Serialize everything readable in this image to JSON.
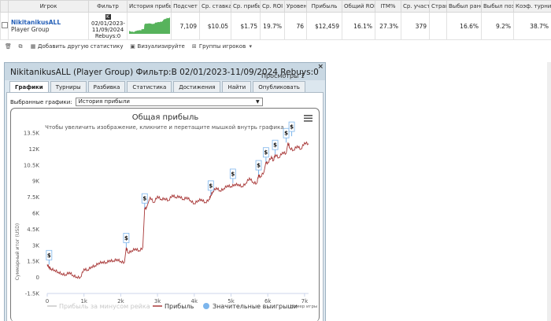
{
  "table": {
    "headers": [
      "Игрок",
      "Фильтр",
      "История прибыли",
      "Подсчет",
      "Ср. ставка",
      "Ср. прибыль",
      "Ср. ROI",
      "Уровень",
      "Прибыль",
      "Общий ROI",
      "ITM%",
      "Ср. участники",
      "Страна",
      "Выбыл рано",
      "Выбыл поздно",
      "Коэф. турнира"
    ],
    "row": {
      "player": "NikitanikusALL",
      "group": "Player Group",
      "filter_icon": "K",
      "filter_line1": "02/01/2023-",
      "filter_line2": "11/09/2024",
      "filter_line3": "Rebuys:0",
      "count": "7,109",
      "avg_stake": "$10.05",
      "avg_profit": "$1.75",
      "avg_roi": "19.7%",
      "level": "76",
      "profit": "$12,459",
      "total_roi": "16.1%",
      "itm": "27.3%",
      "avg_entrants": "379",
      "country": "",
      "early_out": "16.6%",
      "late_out": "9.2%",
      "tourney_coeff": "38.7%"
    }
  },
  "toolbar": {
    "add_stats": "Добавить другую статистику",
    "visualize": "Визуализируйте",
    "player_groups": "Группы игроков"
  },
  "dialog": {
    "title": "NikitanikusALL (Player Group) Фильтр:В 02/01/2023-11/09/2024 Rebuys:0",
    "views_label": "Просмотры",
    "views_count": "1",
    "close": "×",
    "tabs": [
      "Графики",
      "Турниры",
      "Разбивка",
      "Статистика",
      "Достижения",
      "Найти",
      "Опубликовать"
    ],
    "active_tab": 0,
    "selected_charts_label": "Выбранные графики:",
    "selected_chart": "История прибыли"
  },
  "colors": {
    "profit_line": "#a83838",
    "rake_line": "#c8c8c8",
    "big_win": "#7cb5ec",
    "sparkline": "#3aa640",
    "title": "#333333"
  },
  "chart_data": {
    "type": "line",
    "title": "Общая прибыль",
    "subtitle": "Чтобы увеличить изображение, кликните и перетащите мышкой внутрь графика.",
    "xlabel": "Номер игры",
    "ylabel": "Суммарный итог (USD)",
    "xlim": [
      0,
      7109
    ],
    "ylim": [
      -1500,
      13500
    ],
    "x_ticks": [
      0,
      1000,
      2000,
      3000,
      4000,
      5000,
      6000,
      7000
    ],
    "x_tick_labels": [
      "0",
      "1k",
      "2k",
      "3k",
      "4k",
      "5k",
      "6k",
      "7k"
    ],
    "y_ticks": [
      -1500,
      0,
      1500,
      3000,
      4500,
      6000,
      7500,
      9000,
      10500,
      12000,
      13500
    ],
    "y_tick_labels": [
      "-1.5K",
      "0",
      "1.5K",
      "3K",
      "4.5K",
      "6K",
      "7.5K",
      "9K",
      "10.5K",
      "12K",
      "13.5K"
    ],
    "legend": [
      "Прибыль за минусом рейка",
      "Прибыль",
      "Значительные выигрыши"
    ],
    "legend_position": "bottom",
    "series": [
      {
        "name": "Прибыль",
        "x": [
          0,
          50,
          100,
          200,
          300,
          400,
          500,
          600,
          700,
          800,
          900,
          1000,
          1100,
          1200,
          1300,
          1400,
          1500,
          1600,
          1700,
          1800,
          1900,
          2000,
          2100,
          2150,
          2200,
          2300,
          2400,
          2500,
          2600,
          2650,
          2700,
          2800,
          2900,
          3000,
          3100,
          3200,
          3300,
          3400,
          3500,
          3600,
          3700,
          3800,
          3900,
          4000,
          4100,
          4200,
          4300,
          4400,
          4450,
          4500,
          4600,
          4700,
          4800,
          4900,
          5000,
          5100,
          5200,
          5300,
          5400,
          5500,
          5600,
          5700,
          5750,
          5800,
          5900,
          5950,
          6000,
          6100,
          6150,
          6200,
          6300,
          6400,
          6500,
          6550,
          6600,
          6700,
          6800,
          6900,
          7000,
          7109
        ],
        "y": [
          1200,
          1000,
          800,
          700,
          500,
          350,
          250,
          500,
          200,
          50,
          0,
          800,
          700,
          1000,
          1100,
          1350,
          1450,
          1400,
          1600,
          1550,
          1700,
          1500,
          1400,
          2800,
          2300,
          2500,
          2700,
          2500,
          2800,
          6500,
          6500,
          7500,
          7000,
          7600,
          7300,
          7400,
          7200,
          7700,
          7500,
          7600,
          7300,
          7500,
          7200,
          6900,
          7200,
          7300,
          7000,
          7300,
          7700,
          8000,
          8400,
          8100,
          8300,
          8600,
          8500,
          8700,
          8700,
          8500,
          8800,
          9300,
          8900,
          8800,
          9600,
          9400,
          9900,
          10800,
          10700,
          11300,
          10900,
          11500,
          11200,
          11700,
          11600,
          12600,
          12100,
          11900,
          12300,
          12000,
          12600,
          12500
        ]
      },
      {
        "name": "Прибыль за минусом рейка",
        "x": [],
        "y": []
      },
      {
        "name": "Значительные выигрыши",
        "x": [
          50,
          2150,
          2650,
          4450,
          5050,
          5750,
          5950,
          6200,
          6500,
          6650
        ],
        "y": [
          1200,
          2800,
          6500,
          7700,
          8800,
          9600,
          10800,
          11500,
          12600,
          13200
        ]
      }
    ],
    "grid": false
  }
}
